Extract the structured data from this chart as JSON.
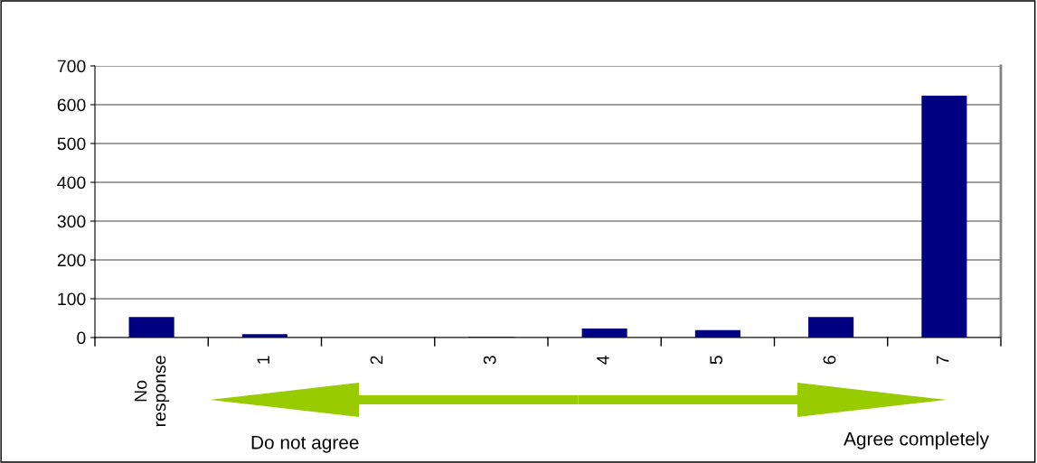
{
  "chart_data": {
    "type": "bar",
    "categories": [
      "No response",
      "1",
      "2",
      "3",
      "4",
      "5",
      "6",
      "7"
    ],
    "values": [
      53,
      9,
      0,
      2,
      23,
      19,
      53,
      623
    ],
    "color": "#000080",
    "ylim": [
      0,
      700
    ],
    "yticks": [
      0,
      100,
      200,
      300,
      400,
      500,
      600,
      700
    ],
    "grid": "y",
    "legend": false,
    "annotations": [
      "Do not agree",
      "Agree completely"
    ]
  }
}
